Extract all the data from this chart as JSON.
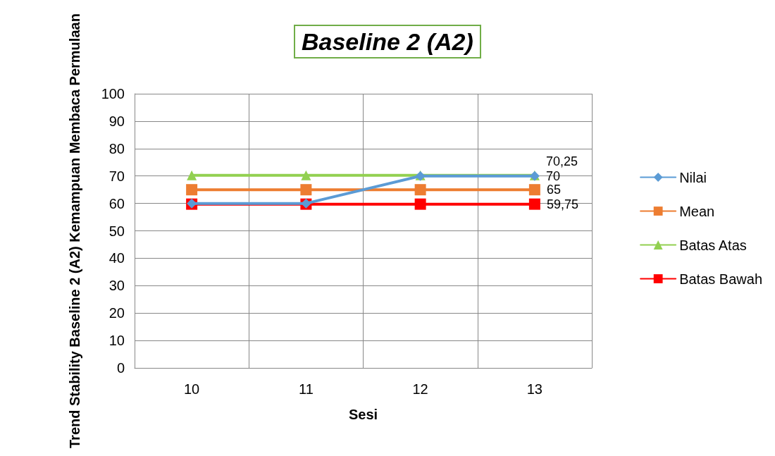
{
  "chart_data": {
    "type": "line",
    "title": "Baseline 2 (A2)",
    "xlabel": "Sesi",
    "ylabel": "Trend Stability Baseline 2 (A2) Kemampuan Membaca Permulaan",
    "categories": [
      "10",
      "11",
      "12",
      "13"
    ],
    "series": [
      {
        "name": "Nilai",
        "color": "#5b9bd5",
        "marker": "diamond",
        "values": [
          60,
          60,
          70,
          70
        ],
        "value_labels": [
          null,
          null,
          null,
          "70"
        ]
      },
      {
        "name": "Mean",
        "color": "#ed7d31",
        "marker": "square",
        "values": [
          65,
          65,
          65,
          65
        ],
        "value_labels": [
          null,
          null,
          null,
          "65"
        ]
      },
      {
        "name": "Batas Atas",
        "color": "#92d050",
        "marker": "triangle",
        "values": [
          70.25,
          70.25,
          70.25,
          70.25
        ],
        "value_labels": [
          null,
          null,
          null,
          "70,25"
        ]
      },
      {
        "name": "Batas Bawah",
        "color": "#ff0000",
        "marker": "square",
        "values": [
          59.75,
          59.75,
          59.75,
          59.75
        ],
        "value_labels": [
          null,
          null,
          null,
          "59,75"
        ]
      }
    ],
    "ylim": [
      0,
      100
    ],
    "yticks": [
      0,
      10,
      20,
      30,
      40,
      50,
      60,
      70,
      80,
      90,
      100
    ],
    "grid": true,
    "legend": "right",
    "line_style": "solid"
  }
}
